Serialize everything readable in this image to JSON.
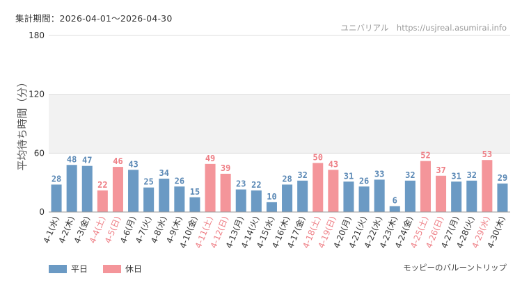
{
  "header": {
    "period": "集計期間：2026-04-01～2026-04-30",
    "credit": "ユニバリアル　https://usjreal.asumirai.info",
    "attraction": "モッピーのバルーントリップ"
  },
  "legend": {
    "weekday_label": "平日",
    "holiday_label": "休日"
  },
  "colors": {
    "weekday": "#6b9ac4",
    "holiday": "#f4959a",
    "weekday_text": "#5a88b5",
    "holiday_text": "#ee7d84",
    "band": "#f2f2f2",
    "grid": "#dddddd"
  },
  "chart_data": {
    "type": "bar",
    "title": "",
    "ylabel": "平均待ち時間（分）",
    "xlabel": "",
    "ylim": [
      0,
      180
    ],
    "yticks": [
      0,
      60,
      120,
      180
    ],
    "highlight_band": [
      60,
      120
    ],
    "categories": [
      "4-1(水)",
      "4-2(木)",
      "4-3(金)",
      "4-4(土)",
      "4-5(日)",
      "4-6(月)",
      "4-7(火)",
      "4-8(水)",
      "4-9(木)",
      "4-10(金)",
      "4-11(土)",
      "4-12(日)",
      "4-13(月)",
      "4-14(火)",
      "4-15(水)",
      "4-16(木)",
      "4-17(金)",
      "4-18(土)",
      "4-19(日)",
      "4-20(月)",
      "4-21(火)",
      "4-22(水)",
      "4-23(木)",
      "4-24(金)",
      "4-25(土)",
      "4-26(日)",
      "4-27(月)",
      "4-28(火)",
      "4-29(水)",
      "4-30(木)"
    ],
    "values": [
      28,
      48,
      47,
      22,
      46,
      43,
      25,
      34,
      26,
      15,
      49,
      39,
      23,
      22,
      10,
      28,
      32,
      50,
      43,
      31,
      26,
      33,
      6,
      32,
      52,
      37,
      31,
      32,
      53,
      29
    ],
    "holiday": [
      false,
      false,
      false,
      true,
      true,
      false,
      false,
      false,
      false,
      false,
      true,
      true,
      false,
      false,
      false,
      false,
      false,
      true,
      true,
      false,
      false,
      false,
      false,
      false,
      true,
      true,
      false,
      false,
      true,
      false
    ],
    "series": [
      {
        "name": "平日"
      },
      {
        "name": "休日"
      }
    ]
  }
}
